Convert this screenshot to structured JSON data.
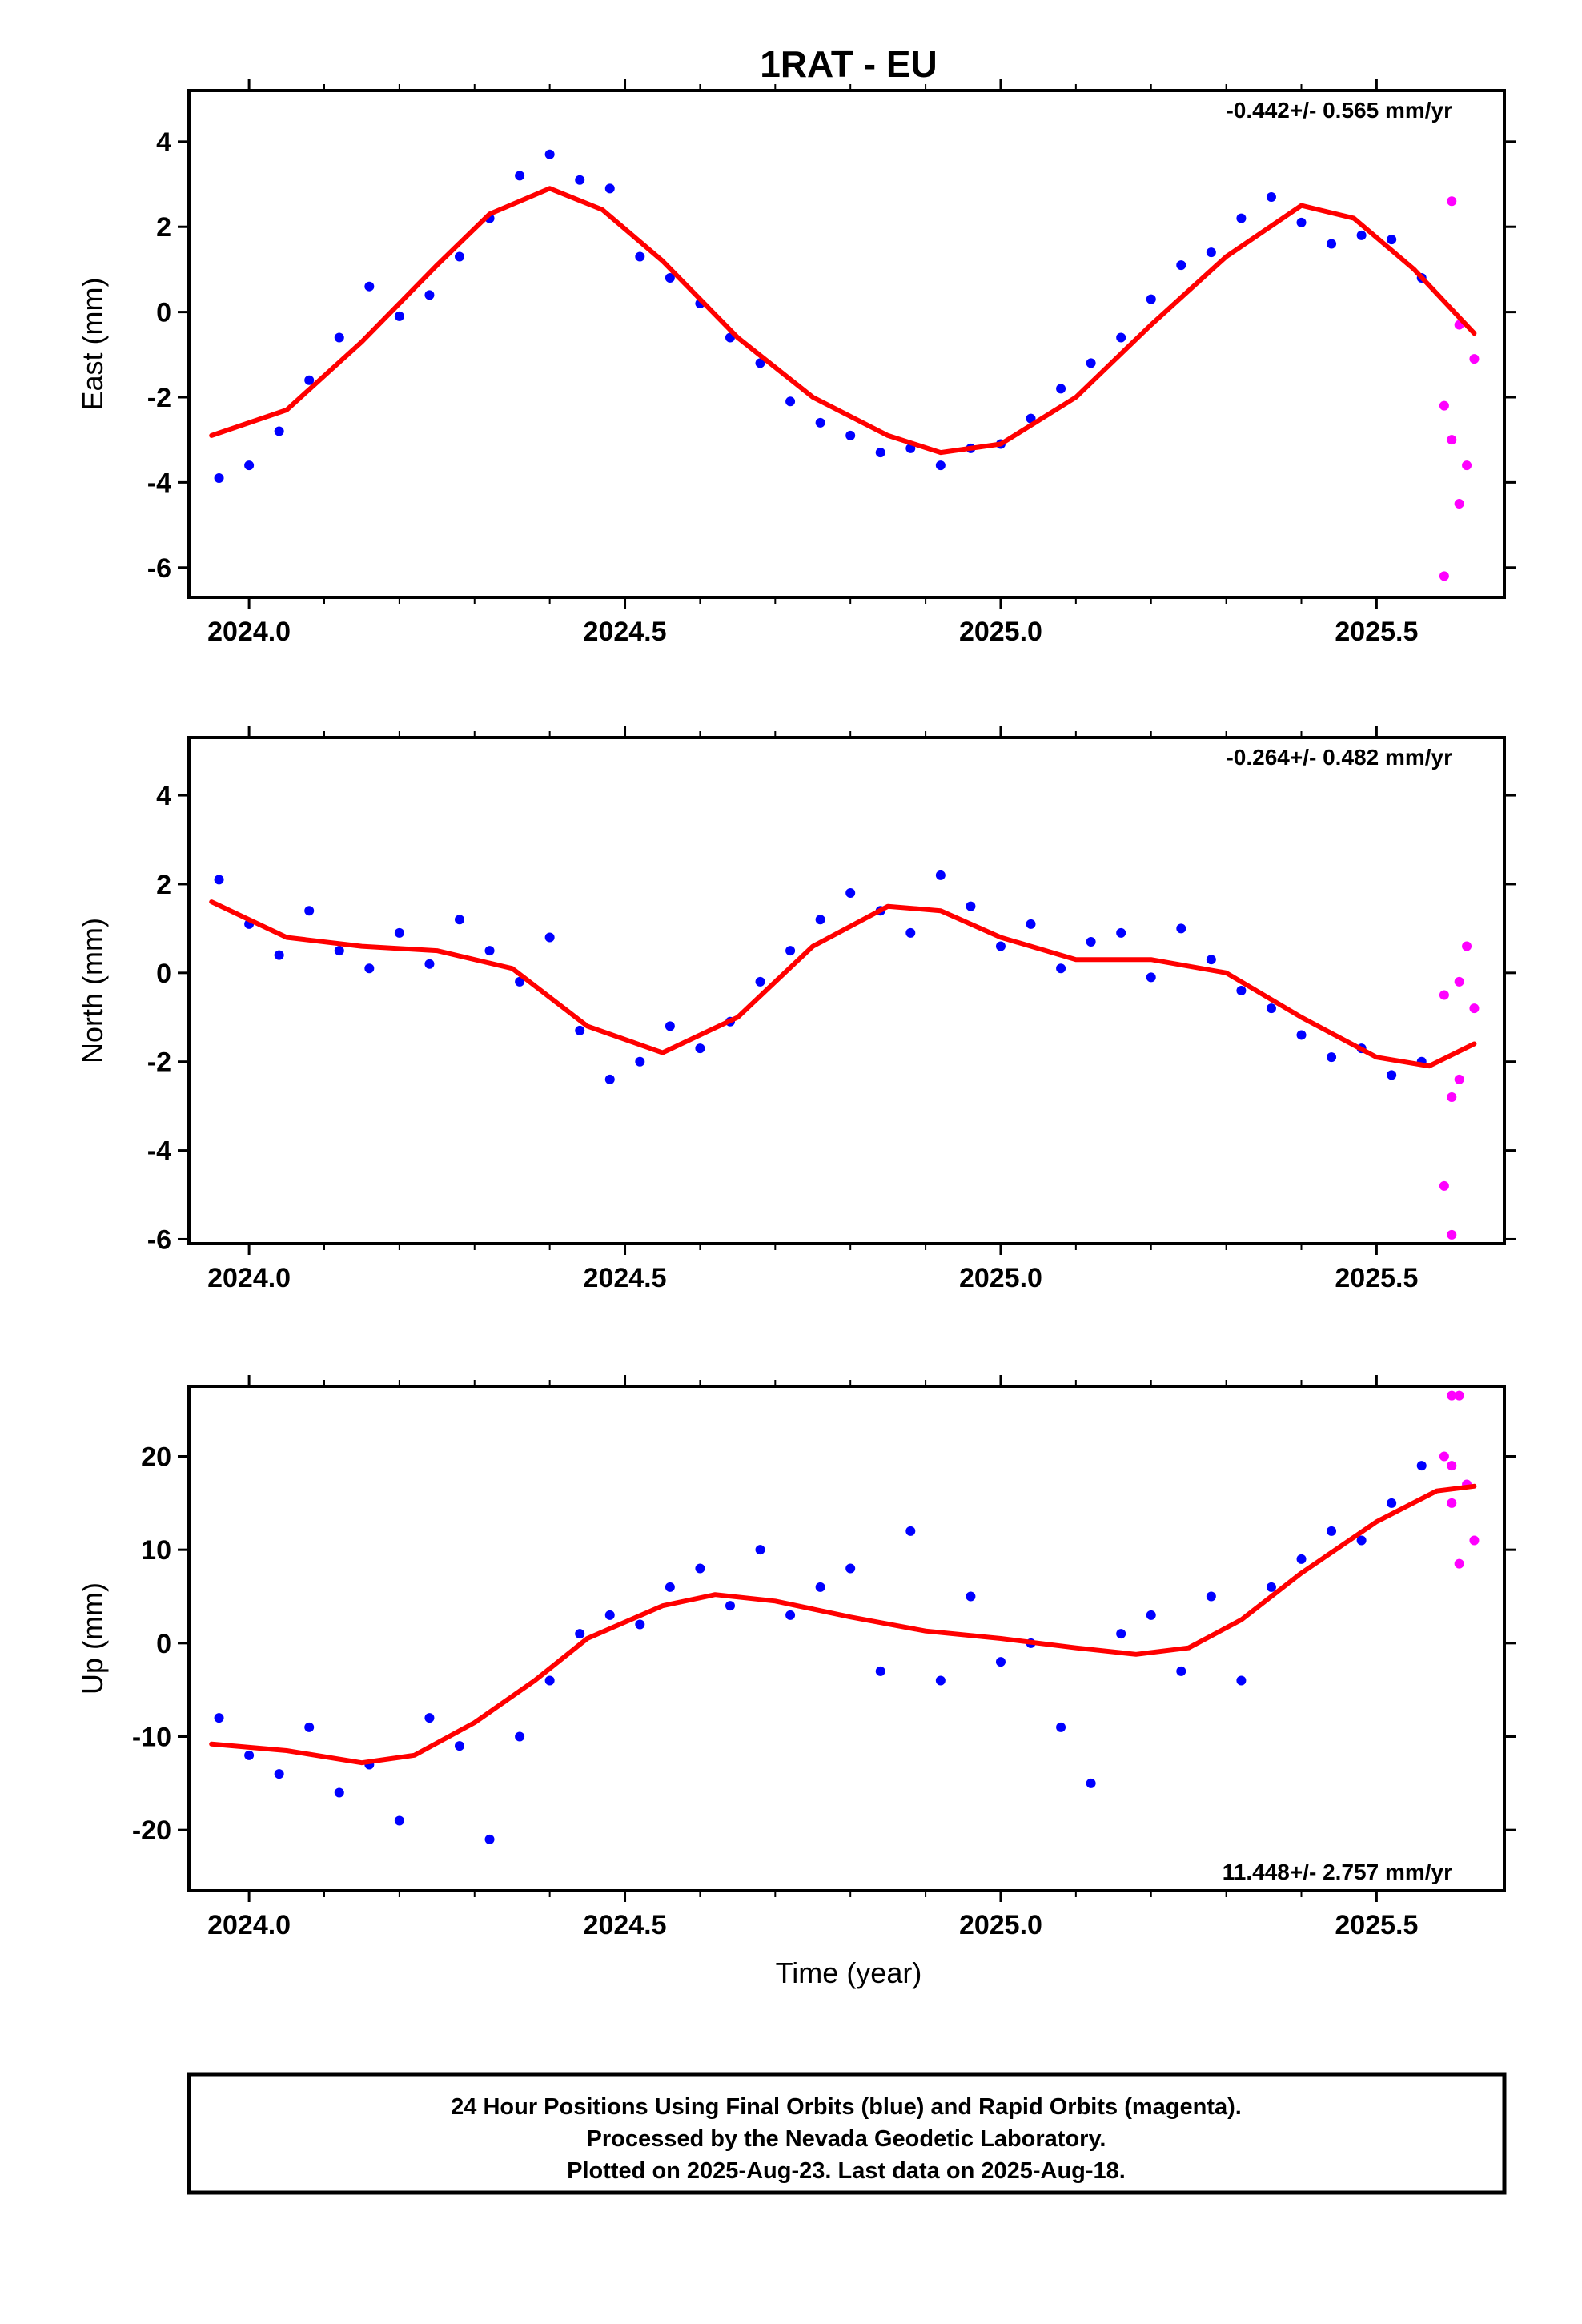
{
  "chart_data": {
    "type": "scatter",
    "title": "1RAT - EU",
    "xlabel": "Time (year)",
    "xlim": [
      2023.92,
      2025.67
    ],
    "x_ticks": [
      "2024.0",
      "2024.5",
      "2025.0",
      "2025.5"
    ],
    "colors": {
      "final": "#0000ff",
      "rapid": "#ff00ff",
      "fit": "#ff0000"
    },
    "panels": [
      {
        "name": "east",
        "ylabel": "East (mm)",
        "ylim": [
          -6.7,
          5.2
        ],
        "y_ticks": [
          "4",
          "2",
          "0",
          "-2",
          "-4",
          "-6"
        ],
        "rate": "-0.442+/- 0.565 mm/yr",
        "rate_position": "top-right",
        "series": [
          {
            "name": "Final Orbits",
            "x": [
              2023.96,
              2024.0,
              2024.04,
              2024.08,
              2024.12,
              2024.16,
              2024.2,
              2024.24,
              2024.28,
              2024.32,
              2024.36,
              2024.4,
              2024.44,
              2024.48,
              2024.52,
              2024.56,
              2024.6,
              2024.64,
              2024.68,
              2024.72,
              2024.76,
              2024.8,
              2024.84,
              2024.88,
              2024.92,
              2024.96,
              2025.0,
              2025.04,
              2025.08,
              2025.12,
              2025.16,
              2025.2,
              2025.24,
              2025.28,
              2025.32,
              2025.36,
              2025.4,
              2025.44,
              2025.48,
              2025.52,
              2025.56
            ],
            "y": [
              -3.9,
              -3.6,
              -2.8,
              -1.6,
              -0.6,
              0.6,
              -0.1,
              0.4,
              1.3,
              2.2,
              3.2,
              3.7,
              3.1,
              2.9,
              1.3,
              0.8,
              0.2,
              -0.6,
              -1.2,
              -2.1,
              -2.6,
              -2.9,
              -3.3,
              -3.2,
              -3.6,
              -3.2,
              -3.1,
              -2.5,
              -1.8,
              -1.2,
              -0.6,
              0.3,
              1.1,
              1.4,
              2.2,
              2.7,
              2.1,
              1.6,
              1.8,
              1.7,
              0.8
            ]
          },
          {
            "name": "Rapid Orbits",
            "x": [
              2025.59,
              2025.6,
              2025.6,
              2025.61,
              2025.62,
              2025.63,
              2025.59,
              2025.61
            ],
            "y": [
              -2.2,
              -3.0,
              2.6,
              -4.5,
              -3.6,
              -1.1,
              -6.2,
              -0.3
            ]
          }
        ],
        "fit": {
          "x": [
            2023.95,
            2024.05,
            2024.15,
            2024.25,
            2024.32,
            2024.4,
            2024.47,
            2024.55,
            2024.65,
            2024.75,
            2024.85,
            2024.92,
            2025.0,
            2025.1,
            2025.2,
            2025.3,
            2025.4,
            2025.47,
            2025.55,
            2025.63
          ],
          "y": [
            -2.9,
            -2.3,
            -0.7,
            1.1,
            2.3,
            2.9,
            2.4,
            1.2,
            -0.6,
            -2.0,
            -2.9,
            -3.3,
            -3.1,
            -2.0,
            -0.3,
            1.3,
            2.5,
            2.2,
            1.0,
            -0.5
          ]
        }
      },
      {
        "name": "north",
        "ylabel": "North (mm)",
        "ylim": [
          -6.1,
          5.3
        ],
        "y_ticks": [
          "4",
          "2",
          "0",
          "-2",
          "-4",
          "-6"
        ],
        "rate": "-0.264+/- 0.482 mm/yr",
        "rate_position": "top-right",
        "series": [
          {
            "name": "Final Orbits",
            "x": [
              2023.96,
              2024.0,
              2024.04,
              2024.08,
              2024.12,
              2024.16,
              2024.2,
              2024.24,
              2024.28,
              2024.32,
              2024.36,
              2024.4,
              2024.44,
              2024.48,
              2024.52,
              2024.56,
              2024.6,
              2024.64,
              2024.68,
              2024.72,
              2024.76,
              2024.8,
              2024.84,
              2024.88,
              2024.92,
              2024.96,
              2025.0,
              2025.04,
              2025.08,
              2025.12,
              2025.16,
              2025.2,
              2025.24,
              2025.28,
              2025.32,
              2025.36,
              2025.4,
              2025.44,
              2025.48,
              2025.52,
              2025.56
            ],
            "y": [
              2.1,
              1.1,
              0.4,
              1.4,
              0.5,
              0.1,
              0.9,
              0.2,
              1.2,
              0.5,
              -0.2,
              0.8,
              -1.3,
              -2.4,
              -2.0,
              -1.2,
              -1.7,
              -1.1,
              -0.2,
              0.5,
              1.2,
              1.8,
              1.4,
              0.9,
              2.2,
              1.5,
              0.6,
              1.1,
              0.1,
              0.7,
              0.9,
              -0.1,
              1.0,
              0.3,
              -0.4,
              -0.8,
              -1.4,
              -1.9,
              -1.7,
              -2.3,
              -2.0
            ]
          },
          {
            "name": "Rapid Orbits",
            "x": [
              2025.59,
              2025.6,
              2025.61,
              2025.62,
              2025.63,
              2025.6,
              2025.59,
              2025.61
            ],
            "y": [
              -0.5,
              -2.8,
              -2.4,
              0.6,
              -0.8,
              -5.9,
              -4.8,
              -0.2
            ]
          }
        ],
        "fit": {
          "x": [
            2023.95,
            2024.05,
            2024.15,
            2024.25,
            2024.35,
            2024.45,
            2024.55,
            2024.65,
            2024.75,
            2024.85,
            2024.92,
            2025.0,
            2025.1,
            2025.2,
            2025.3,
            2025.4,
            2025.5,
            2025.57,
            2025.63
          ],
          "y": [
            1.6,
            0.8,
            0.6,
            0.5,
            0.1,
            -1.2,
            -1.8,
            -1.0,
            0.6,
            1.5,
            1.4,
            0.8,
            0.3,
            0.3,
            0.0,
            -1.0,
            -1.9,
            -2.1,
            -1.6
          ]
        }
      },
      {
        "name": "up",
        "ylabel": "Up (mm)",
        "ylim": [
          -26.5,
          27.5
        ],
        "y_ticks": [
          "20",
          "10",
          "0",
          "-10",
          "-20"
        ],
        "rate": "11.448+/- 2.757 mm/yr",
        "rate_position": "bottom-right",
        "series": [
          {
            "name": "Final Orbits",
            "x": [
              2023.96,
              2024.0,
              2024.04,
              2024.08,
              2024.12,
              2024.16,
              2024.2,
              2024.24,
              2024.28,
              2024.32,
              2024.36,
              2024.4,
              2024.44,
              2024.48,
              2024.52,
              2024.56,
              2024.6,
              2024.64,
              2024.68,
              2024.72,
              2024.76,
              2024.8,
              2024.84,
              2024.88,
              2024.92,
              2024.96,
              2025.0,
              2025.04,
              2025.08,
              2025.12,
              2025.16,
              2025.2,
              2025.24,
              2025.28,
              2025.32,
              2025.36,
              2025.4,
              2025.44,
              2025.48,
              2025.52,
              2025.56
            ],
            "y": [
              -8,
              -12,
              -14,
              -9,
              -16,
              -13,
              -19,
              -8,
              -11,
              -21,
              -10,
              -4,
              1,
              3,
              2,
              6,
              8,
              4,
              10,
              3,
              6,
              8,
              -3,
              12,
              -4,
              5,
              -2,
              0,
              -9,
              -15,
              1,
              3,
              -3,
              5,
              -4,
              6,
              9,
              12,
              11,
              15,
              19
            ]
          },
          {
            "name": "Rapid Orbits",
            "x": [
              2025.59,
              2025.6,
              2025.6,
              2025.61,
              2025.62,
              2025.63,
              2025.6,
              2025.61
            ],
            "y": [
              20,
              26.5,
              15,
              8.5,
              17,
              11,
              19,
              26.5
            ]
          }
        ],
        "fit": {
          "x": [
            2023.95,
            2024.05,
            2024.15,
            2024.22,
            2024.3,
            2024.38,
            2024.45,
            2024.55,
            2024.62,
            2024.7,
            2024.8,
            2024.9,
            2025.0,
            2025.1,
            2025.18,
            2025.25,
            2025.32,
            2025.4,
            2025.5,
            2025.58,
            2025.63
          ],
          "y": [
            -10.8,
            -11.5,
            -12.8,
            -12.0,
            -8.5,
            -4.0,
            0.5,
            4.0,
            5.2,
            4.5,
            2.8,
            1.3,
            0.5,
            -0.5,
            -1.2,
            -0.5,
            2.5,
            7.5,
            13.0,
            16.3,
            16.8
          ]
        }
      }
    ]
  },
  "footer": {
    "line1": "24 Hour Positions Using Final Orbits (blue) and Rapid Orbits (magenta).",
    "line2": "Processed by the Nevada Geodetic Laboratory.",
    "line3": "Plotted on 2025-Aug-23. Last data on 2025-Aug-18."
  }
}
